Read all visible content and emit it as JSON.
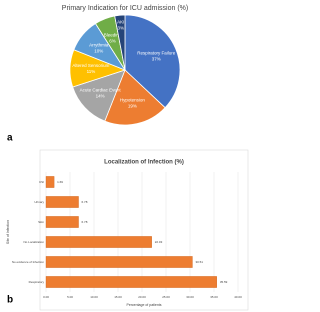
{
  "chart_data": [
    {
      "type": "pie",
      "panel": "a",
      "title": "Primary Indication for ICU admission (%)",
      "categories": [
        "Respiratory Failure",
        "Hypotension",
        "Acute Cardiac Event",
        "Altered Sensorium",
        "Arrythmia",
        "Bleeding",
        "AKI"
      ],
      "values": [
        37,
        19,
        14,
        11,
        10,
        6,
        3
      ],
      "value_labels": [
        "37%",
        "19%",
        "14%",
        "11%",
        "10%",
        "6%",
        "3%"
      ],
      "colors": [
        "#4472c4",
        "#ed7d31",
        "#a5a5a5",
        "#ffc000",
        "#5b9bd5",
        "#70ad47",
        "#264478"
      ]
    },
    {
      "type": "barh",
      "panel": "b",
      "title": "Localization of Infection (%)",
      "xlabel": "Percentage of patients",
      "ylabel": "Site of Infection",
      "categories": [
        "CSI",
        "Urinary",
        "Skin",
        "No Localization",
        "No evidence of Infection",
        "Respiratory"
      ],
      "values": [
        1.69,
        6.78,
        6.78,
        22.03,
        30.51,
        35.59
      ],
      "color": "#ed7d31",
      "xlim": [
        0,
        40
      ],
      "xticks": [
        {
          "value": 0,
          "label": "0.00"
        },
        {
          "value": 5,
          "label": "5.00"
        },
        {
          "value": 10,
          "label": "10.00"
        },
        {
          "value": 15,
          "label": "15.00"
        },
        {
          "value": 20,
          "label": "20.00"
        },
        {
          "value": 25,
          "label": "25.00"
        },
        {
          "value": 30,
          "label": "30.00"
        },
        {
          "value": 35,
          "label": "35.00"
        },
        {
          "value": 40,
          "label": "40.00"
        }
      ],
      "grid": true
    }
  ]
}
